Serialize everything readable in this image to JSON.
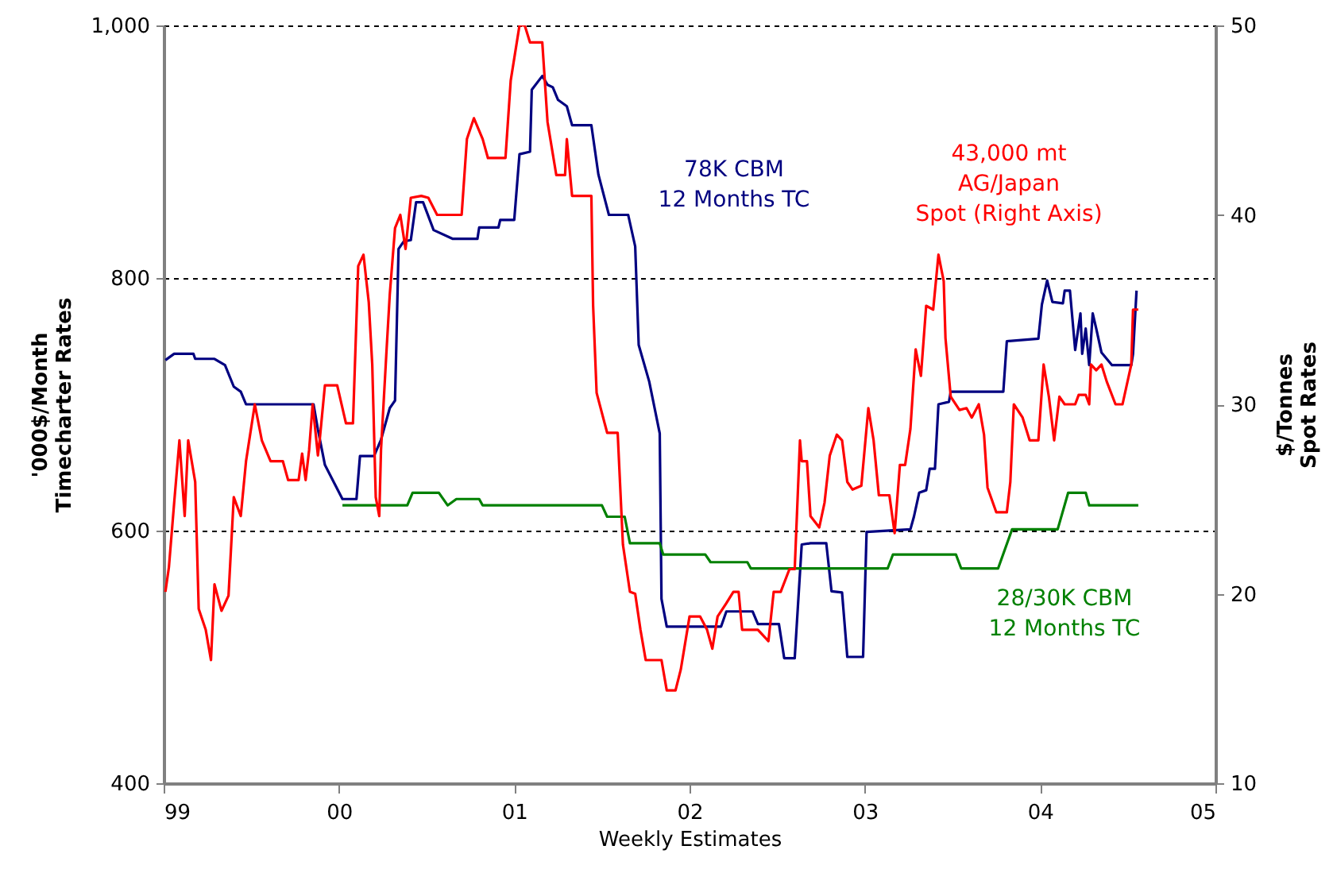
{
  "chart_data": {
    "type": "line",
    "xlabel": "Weekly Estimates",
    "ylabel": "'000$/Month\nTimecharter Rates",
    "y2label": "$/Tonnes\nSpot Rates",
    "xlim": [
      1999,
      2005
    ],
    "xticks": [
      {
        "value": 1999,
        "label": "99"
      },
      {
        "value": 2000,
        "label": "00"
      },
      {
        "value": 2001,
        "label": "01"
      },
      {
        "value": 2002,
        "label": "02"
      },
      {
        "value": 2003,
        "label": "03"
      },
      {
        "value": 2004,
        "label": "04"
      },
      {
        "value": 2005,
        "label": "05"
      }
    ],
    "ylim": [
      400,
      1000
    ],
    "yticks": [
      400,
      600,
      800,
      {
        "value": 1000,
        "label": "1,000"
      }
    ],
    "y2lim": [
      10,
      50
    ],
    "y2ticks": [
      10,
      20,
      30,
      40,
      50
    ],
    "grid": "y",
    "marker": "none",
    "line_style": "solid",
    "series": [
      {
        "name": "78K CBM\n12 Months TC",
        "color": "#000080",
        "x": [
          1999.01,
          1999.06,
          1999.17,
          1999.18,
          1999.29,
          1999.35,
          1999.4,
          1999.44,
          1999.47,
          1999.855,
          1999.88,
          1999.92,
          2000.02,
          2000.1,
          2000.12,
          2000.2,
          2000.24,
          2000.29,
          2000.32,
          2000.34,
          2000.37,
          2000.41,
          2000.44,
          2000.48,
          2000.54,
          2000.65,
          2000.79,
          2000.8,
          2000.91,
          2000.92,
          2001.0,
          2001.03,
          2001.09,
          2001.1,
          2001.16,
          2001.19,
          2001.22,
          2001.25,
          2001.3,
          2001.33,
          2001.44,
          2001.48,
          2001.54,
          2001.65,
          2001.69,
          2001.71,
          2001.77,
          2001.83,
          2001.84,
          2001.87,
          2002.18,
          2002.21,
          2002.36,
          2002.39,
          2002.51,
          2002.54,
          2002.6,
          2002.64,
          2002.69,
          2002.78,
          2002.81,
          2002.87,
          2002.9,
          2002.99,
          2003.01,
          2003.26,
          2003.28,
          2003.31,
          2003.35,
          2003.37,
          2003.4,
          2003.42,
          2003.48,
          2003.49,
          2003.79,
          2003.81,
          2003.99,
          2004.01,
          2004.04,
          2004.07,
          2004.13,
          2004.14,
          2004.17,
          2004.2,
          2004.23,
          2004.24,
          2004.26,
          2004.28,
          2004.3,
          2004.32,
          2004.35,
          2004.41,
          2004.52,
          2004.53,
          2004.55
        ],
        "values": [
          735,
          740,
          740,
          736,
          736,
          731,
          714,
          710,
          700,
          700,
          680,
          652,
          625,
          625,
          659,
          659,
          672,
          697,
          703,
          823,
          829,
          830,
          860,
          860,
          838,
          831,
          831,
          840,
          840,
          846,
          846,
          898,
          900,
          949,
          960,
          953,
          951,
          941,
          936,
          921,
          921,
          882,
          850,
          850,
          825,
          747,
          718,
          677,
          546,
          524,
          524,
          536,
          536,
          526,
          526,
          499,
          499,
          589,
          590,
          590,
          552,
          551,
          500,
          500,
          599,
          601,
          611,
          630,
          632,
          649,
          649,
          700,
          702,
          710,
          710,
          750,
          752,
          779,
          798,
          781,
          780,
          790,
          790,
          743,
          772,
          740,
          760,
          731,
          772,
          760,
          741,
          731,
          731,
          740,
          790
        ]
      },
      {
        "name": "43,000 mt\nAG/Japan\nSpot (Right Axis)",
        "color": "#ff0000",
        "axis": "y2",
        "x": [
          1999.01,
          1999.03,
          1999.06,
          1999.09,
          1999.12,
          1999.14,
          1999.18,
          1999.2,
          1999.24,
          1999.27,
          1999.29,
          1999.33,
          1999.37,
          1999.4,
          1999.44,
          1999.47,
          1999.52,
          1999.56,
          1999.61,
          1999.68,
          1999.71,
          1999.77,
          1999.79,
          1999.81,
          1999.83,
          1999.85,
          1999.88,
          1999.89,
          1999.92,
          1999.99,
          2000.04,
          2000.08,
          2000.11,
          2000.14,
          2000.17,
          2000.19,
          2000.21,
          2000.23,
          2000.24,
          2000.27,
          2000.29,
          2000.32,
          2000.35,
          2000.38,
          2000.41,
          2000.47,
          2000.51,
          2000.56,
          2000.7,
          2000.73,
          2000.77,
          2000.82,
          2000.85,
          2000.95,
          2000.98,
          2001.03,
          2001.06,
          2001.09,
          2001.16,
          2001.19,
          2001.24,
          2001.29,
          2001.3,
          2001.33,
          2001.44,
          2001.45,
          2001.47,
          2001.53,
          2001.59,
          2001.62,
          2001.66,
          2001.69,
          2001.72,
          2001.75,
          2001.84,
          2001.87,
          2001.92,
          2001.95,
          2002.0,
          2002.06,
          2002.1,
          2002.13,
          2002.16,
          2002.21,
          2002.25,
          2002.28,
          2002.3,
          2002.39,
          2002.45,
          2002.48,
          2002.52,
          2002.57,
          2002.6,
          2002.63,
          2002.64,
          2002.67,
          2002.69,
          2002.74,
          2002.77,
          2002.8,
          2002.84,
          2002.87,
          2002.9,
          2002.93,
          2002.98,
          2003.02,
          2003.05,
          2003.08,
          2003.14,
          2003.17,
          2003.2,
          2003.23,
          2003.26,
          2003.29,
          2003.32,
          2003.35,
          2003.39,
          2003.42,
          2003.45,
          2003.46,
          2003.49,
          2003.54,
          2003.58,
          2003.61,
          2003.65,
          2003.68,
          2003.7,
          2003.75,
          2003.81,
          2003.83,
          2003.85,
          2003.9,
          2003.94,
          2003.99,
          2004.02,
          2004.05,
          2004.08,
          2004.11,
          2004.14,
          2004.2,
          2004.22,
          2004.26,
          2004.28,
          2004.29,
          2004.32,
          2004.35,
          2004.38,
          2004.43,
          2004.47,
          2004.52,
          2004.53,
          2004.56
        ],
        "values": [
          20.1,
          21.4,
          24.8,
          28.1,
          24.1,
          28.1,
          25.9,
          19.2,
          18.1,
          16.5,
          20.5,
          19.1,
          19.9,
          25.1,
          24.1,
          27.0,
          30.0,
          28.1,
          27.0,
          27.0,
          26.0,
          26.0,
          27.4,
          26.0,
          27.6,
          30.0,
          27.3,
          28.1,
          31.0,
          31.0,
          29.0,
          29.0,
          37.3,
          37.9,
          35.4,
          32.1,
          25.1,
          24.1,
          27.6,
          32.6,
          35.8,
          39.3,
          40.0,
          38.2,
          40.9,
          41.0,
          40.9,
          40.0,
          40.0,
          44.0,
          45.1,
          44.0,
          43.0,
          43.0,
          47.1,
          50.0,
          50.0,
          49.1,
          49.1,
          44.9,
          42.1,
          42.1,
          44.0,
          41.0,
          41.0,
          35.2,
          30.6,
          28.5,
          28.5,
          22.6,
          20.1,
          20.0,
          18.1,
          16.5,
          16.5,
          14.9,
          14.9,
          16.0,
          18.8,
          18.8,
          18.1,
          17.1,
          18.8,
          19.5,
          20.1,
          20.1,
          18.1,
          18.1,
          17.5,
          20.1,
          20.1,
          21.3,
          21.3,
          28.1,
          27.0,
          27.0,
          24.1,
          23.5,
          24.8,
          27.3,
          28.4,
          28.1,
          25.9,
          25.5,
          25.7,
          29.8,
          28.1,
          25.2,
          25.2,
          23.2,
          26.8,
          26.8,
          28.7,
          32.9,
          31.5,
          35.2,
          35.0,
          37.9,
          36.5,
          33.5,
          30.4,
          29.7,
          29.8,
          29.3,
          30.0,
          28.4,
          25.6,
          24.3,
          24.3,
          25.9,
          30.0,
          29.3,
          28.1,
          28.1,
          32.1,
          30.4,
          28.1,
          30.4,
          30.0,
          30.0,
          30.5,
          30.5,
          30.0,
          32.1,
          31.8,
          32.1,
          31.2,
          30.0,
          30.0,
          32.1,
          35.0,
          35.0
        ]
      },
      {
        "name": "28/30K CBM\n12 Months TC",
        "color": "#008000",
        "x": [
          2000.02,
          2000.39,
          2000.42,
          2000.57,
          2000.62,
          2000.67,
          2000.8,
          2000.82,
          2001.5,
          2001.53,
          2001.63,
          2001.66,
          2001.83,
          2001.85,
          2002.09,
          2002.12,
          2002.33,
          2002.35,
          2003.13,
          2003.16,
          2003.52,
          2003.55,
          2003.76,
          2003.84,
          2004.1,
          2004.16,
          2004.26,
          2004.28,
          2004.56
        ],
        "values": [
          620,
          620,
          630,
          630,
          620,
          625,
          625,
          620,
          620,
          611,
          611,
          590,
          590,
          581,
          581,
          575,
          575,
          570,
          570,
          581,
          581,
          570,
          570,
          601,
          601,
          630,
          630,
          620,
          620
        ]
      }
    ]
  }
}
